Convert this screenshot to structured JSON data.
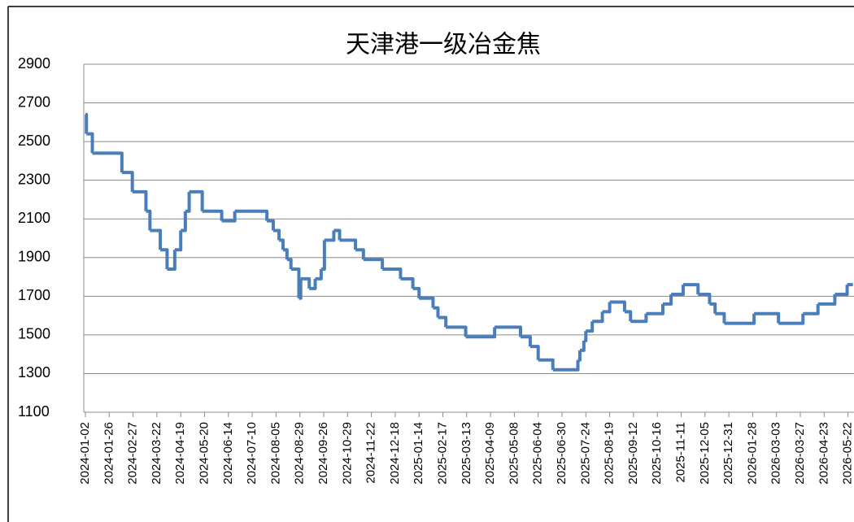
{
  "chart_data": {
    "type": "line",
    "title": "天津港一级冶金焦",
    "step": "post",
    "grid": true,
    "x": [
      "2024-01-02",
      "2024-01-03",
      "2024-01-09",
      "2024-02-12",
      "2024-02-26",
      "2024-03-11",
      "2024-03-15",
      "2024-03-26",
      "2024-04-03",
      "2024-04-12",
      "2024-04-19",
      "2024-04-25",
      "2024-04-30",
      "2024-05-17",
      "2024-06-07",
      "2024-06-21",
      "2024-07-26",
      "2024-08-02",
      "2024-08-08",
      "2024-08-12",
      "2024-08-16",
      "2024-08-20",
      "2024-08-28",
      "2024-08-30",
      "2024-09-09",
      "2024-09-16",
      "2024-09-23",
      "2024-09-27",
      "2024-10-10",
      "2024-10-18",
      "2024-11-06",
      "2024-11-14",
      "2024-12-04",
      "2024-12-24",
      "2025-01-07",
      "2025-01-14",
      "2025-02-03",
      "2025-02-10",
      "2025-02-20",
      "2025-03-12",
      "2025-04-14",
      "2025-05-15",
      "2025-05-26",
      "2025-06-04",
      "2025-06-20",
      "2025-07-16",
      "2025-07-18",
      "2025-07-22",
      "2025-07-24",
      "2025-07-31",
      "2025-08-11",
      "2025-08-19",
      "2025-09-03",
      "2025-09-09",
      "2025-09-30",
      "2025-10-22",
      "2025-10-31",
      "2025-11-13",
      "2025-11-28",
      "2025-12-10",
      "2025-12-16",
      "2025-12-26",
      "2026-01-30",
      "2026-03-05",
      "2026-03-30",
      "2026-04-16",
      "2026-05-06",
      "2026-05-21",
      "2026-05-28"
    ],
    "series": [
      {
        "name": "天津港一级冶金焦",
        "color": "#4a7ebb",
        "values": [
          2640,
          2540,
          2440,
          2340,
          2240,
          2140,
          2040,
          1940,
          1840,
          1940,
          2040,
          2140,
          2240,
          2140,
          2090,
          2140,
          2090,
          2040,
          1990,
          1940,
          1890,
          1840,
          1690,
          1790,
          1740,
          1790,
          1840,
          1990,
          2040,
          1990,
          1940,
          1890,
          1840,
          1790,
          1740,
          1690,
          1640,
          1590,
          1540,
          1490,
          1540,
          1490,
          1440,
          1370,
          1320,
          1370,
          1420,
          1470,
          1520,
          1570,
          1620,
          1670,
          1620,
          1570,
          1610,
          1660,
          1710,
          1760,
          1710,
          1660,
          1610,
          1560,
          1610,
          1560,
          1610,
          1660,
          1710,
          1760,
          1760
        ]
      }
    ],
    "xlim": [
      "2024-01-02",
      "2026-05-29"
    ],
    "xticks": [
      "2024-01-02",
      "2024-01-26",
      "2024-02-27",
      "2024-03-22",
      "2024-04-19",
      "2024-05-20",
      "2024-06-14",
      "2024-07-10",
      "2024-08-05",
      "2024-08-29",
      "2024-09-26",
      "2024-10-29",
      "2024-11-22",
      "2024-12-18",
      "2025-01-14",
      "2025-02-17",
      "2025-03-13",
      "2025-04-09",
      "2025-05-08",
      "2025-06-04",
      "2025-06-30",
      "2025-07-24",
      "2025-08-19",
      "2025-09-12",
      "2025-10-16",
      "2025-11-11",
      "2025-12-05",
      "2025-12-31",
      "2026-01-28",
      "2026-03-03",
      "2026-03-27",
      "2026-04-23",
      "2026-05-22"
    ],
    "ylim": [
      1100,
      2900
    ],
    "yticks": [
      1100,
      1300,
      1500,
      1700,
      1900,
      2100,
      2300,
      2500,
      2700,
      2900
    ]
  }
}
